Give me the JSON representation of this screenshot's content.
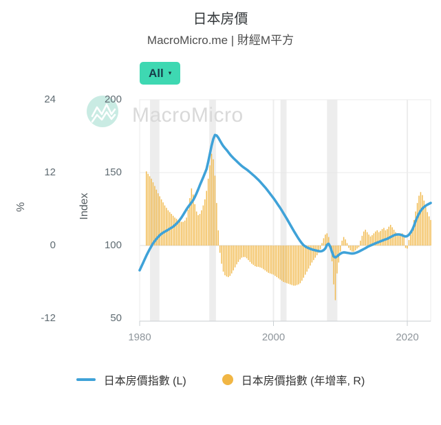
{
  "header": {
    "title": "日本房價",
    "subtitle": "MacroMicro.me | 財經M平方"
  },
  "controls": {
    "range_button": {
      "label": "All",
      "caret": "▾"
    }
  },
  "watermark": {
    "brand": "MacroMicro"
  },
  "colors": {
    "accent_teal": "#3ed8b2",
    "line_blue": "#3fa2d8",
    "bar_orange": "#f1b644",
    "band_gray": "#ededed",
    "watermark_circle": "#c9ebe3"
  },
  "chart_data": {
    "type": "combo",
    "title": "日本房價",
    "x_axis": {
      "ticks": [
        1980,
        2000,
        2020
      ],
      "range": [
        1980,
        2023.75
      ]
    },
    "pct_axis": {
      "title": "%",
      "ticks": [
        24,
        12,
        0,
        -12
      ]
    },
    "index_axis": {
      "title": "Index",
      "ticks": [
        200,
        150,
        100,
        50
      ]
    },
    "grid": {
      "h_index_levels": [
        200,
        150,
        100
      ],
      "v_year_levels": [
        2000,
        2020
      ]
    },
    "recession_bands": [
      [
        1981.55,
        1982.95
      ],
      [
        1990.4,
        1991.4
      ],
      [
        2001.05,
        2001.95
      ],
      [
        2008.0,
        2009.55
      ]
    ],
    "series": [
      {
        "name": "日本房價指數 (L)",
        "type": "line",
        "axis": "index",
        "color": "#3fa2d8",
        "x_start": 1980.0,
        "x_step": 0.25,
        "values": [
          83,
          85.5,
          88,
          90.5,
          93,
          95.3,
          97.5,
          99.5,
          101.5,
          103,
          104.5,
          105.8,
          107,
          108,
          108.8,
          109.5,
          110.1,
          110.8,
          111.5,
          112.2,
          112.9,
          113.9,
          115,
          116.2,
          117.6,
          119.2,
          121,
          122.9,
          124.8,
          126.5,
          128,
          129.5,
          131.1,
          133.3,
          135.8,
          138.5,
          141.4,
          144.1,
          146.8,
          149.6,
          152.5,
          157.5,
          163,
          168.5,
          173,
          175.8,
          175.5,
          174,
          172,
          170,
          168.2,
          166.8,
          165.5,
          164,
          162.5,
          161.2,
          160,
          158.9,
          157.8,
          156.7,
          155.6,
          154.6,
          153.7,
          152.9,
          152.1,
          151.2,
          150.2,
          149.2,
          148.2,
          147.2,
          146.1,
          145,
          143.8,
          142.5,
          141.2,
          139.9,
          138.5,
          137,
          135.5,
          134,
          132.5,
          130.9,
          129.2,
          127.5,
          125.8,
          124,
          122.1,
          120.2,
          118.3,
          116.3,
          114.3,
          112.3,
          110.3,
          108.4,
          106.5,
          104.7,
          103,
          101.5,
          100.2,
          99.4,
          98.7,
          98.2,
          97.7,
          97.3,
          97,
          96.7,
          96.4,
          96.2,
          96,
          96.2,
          96.8,
          98,
          100.5,
          101.2,
          99,
          95.5,
          92.5,
          91.8,
          92.5,
          93.5,
          94.4,
          95,
          95.3,
          95.2,
          95,
          94.8,
          94.6,
          94.5,
          94.6,
          94.9,
          95.3,
          95.8,
          96.4,
          97,
          97.6,
          98.2,
          98.9,
          99.5,
          100,
          100.5,
          101,
          101.5,
          102,
          102.4,
          102.9,
          103.3,
          103.8,
          104.2,
          104.6,
          105.2,
          105.8,
          106.4,
          107,
          107.4,
          107.6,
          107.6,
          107.4,
          107,
          106.5,
          106.2,
          106.5,
          107.4,
          108.9,
          110.8,
          113.5,
          116.8,
          119.5,
          121.8,
          123.8,
          125.3,
          126.4,
          127.3,
          128,
          128.6,
          129.2
        ]
      },
      {
        "name": "日本房價指數 (年增率, R)",
        "type": "bar",
        "axis": "pct",
        "color": "#f1b644",
        "x_start": 1981.0,
        "x_step": 0.25,
        "values": [
          12.2,
          11.8,
          11.4,
          11,
          10.4,
          9.8,
          9.2,
          8.6,
          8.1,
          7.6,
          7.1,
          6.6,
          6.2,
          5.8,
          5.5,
          5.2,
          4.9,
          4.6,
          4.4,
          4.2,
          4,
          3.9,
          3.9,
          4.1,
          4.6,
          5.9,
          7.8,
          9.4,
          8.4,
          6.8,
          5.6,
          5,
          5.2,
          5.8,
          6.6,
          7.6,
          9,
          11,
          13.2,
          15.1,
          14.2,
          11.5,
          7,
          2.5,
          -1.2,
          -3,
          -4.3,
          -4.9,
          -5.1,
          -5.2,
          -5,
          -4.6,
          -4.1,
          -3.6,
          -3.1,
          -2.7,
          -2.3,
          -2,
          -1.9,
          -1.9,
          -2.1,
          -2.4,
          -2.7,
          -3,
          -3.2,
          -3.4,
          -3.5,
          -3.5,
          -3.6,
          -3.7,
          -3.9,
          -4.1,
          -4.3,
          -4.5,
          -4.6,
          -4.7,
          -4.8,
          -5,
          -5.2,
          -5.4,
          -5.6,
          -5.8,
          -6,
          -6.1,
          -6.2,
          -6.3,
          -6.4,
          -6.5,
          -6.6,
          -6.6,
          -6.5,
          -6.4,
          -6.2,
          -5.8,
          -5.3,
          -4.8,
          -4.3,
          -3.8,
          -3.3,
          -2.8,
          -2.4,
          -2,
          -1.6,
          -1.2,
          -0.6,
          0.4,
          1.2,
          1.8,
          2,
          1.4,
          -0.6,
          -2.6,
          -6.4,
          -9,
          -4.6,
          -2.8,
          -1,
          0.8,
          1.4,
          1,
          0.4,
          -0.4,
          -0.8,
          -1,
          -1,
          -0.8,
          -0.5,
          -0.3,
          0.8,
          1.6,
          2.3,
          2.6,
          2.2,
          1.8,
          1.5,
          1.7,
          2,
          2.3,
          2.5,
          2.2,
          2.4,
          2.7,
          2.9,
          2.5,
          2.7,
          3.1,
          3.4,
          3,
          2.6,
          2.2,
          1.9,
          1.6,
          1.8,
          2,
          1.7,
          -0.4,
          -0.5,
          0.9,
          1.8,
          2.6,
          4.2,
          5.6,
          7,
          8.2,
          8.8,
          8.3,
          7.4,
          6.4,
          5.5,
          4.8,
          4.2
        ]
      }
    ]
  }
}
